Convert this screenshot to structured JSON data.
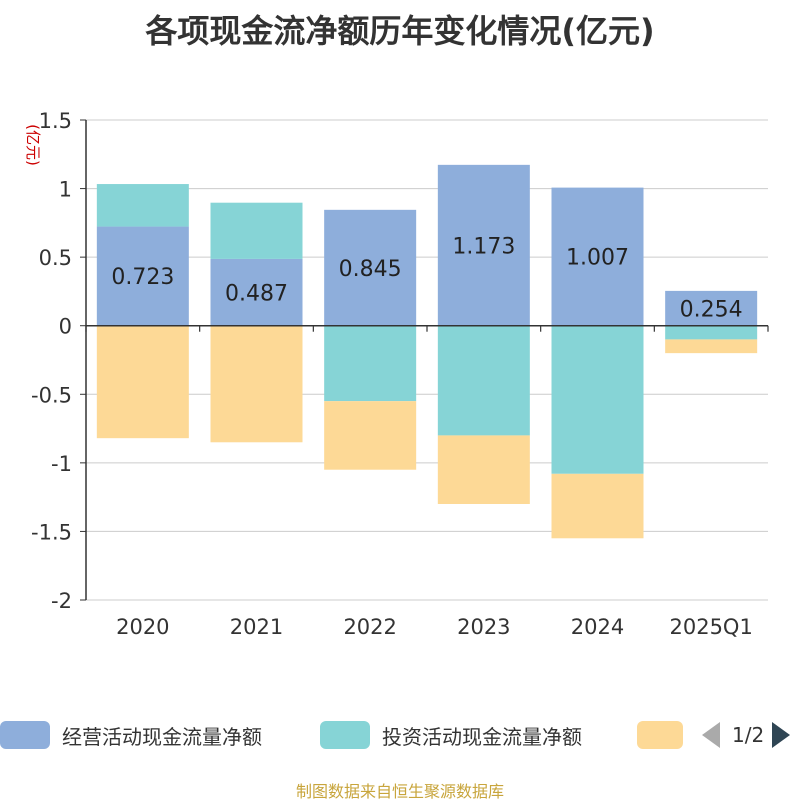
{
  "chart_data": {
    "type": "bar",
    "stacked": true,
    "title": "各项现金流净额历年变化情况(亿元)",
    "ylabel": "(亿元)",
    "categories": [
      "2020",
      "2021",
      "2022",
      "2023",
      "2024",
      "2025Q1"
    ],
    "ylim": [
      -2,
      1.5
    ],
    "yticks": [
      "1.5",
      "1",
      "0.5",
      "0",
      "-0.5",
      "-1",
      "-1.5",
      "-2"
    ],
    "grid": true,
    "legend_position": "bottom",
    "series": [
      {
        "name": "经营活动现金流量净额",
        "color": "#8eaedb",
        "values": [
          0.723,
          0.487,
          0.845,
          1.173,
          1.007,
          0.254
        ],
        "labels": [
          "0.723",
          "0.487",
          "0.845",
          "1.173",
          "1.007",
          "0.254"
        ]
      },
      {
        "name": "投资活动现金流量净额",
        "color": "#86d4d6",
        "values": [
          0.31,
          0.41,
          -0.55,
          -0.8,
          -1.08,
          -0.1
        ]
      },
      {
        "name": "",
        "color": "#fdd996",
        "values": [
          -0.82,
          -0.85,
          -0.5,
          -0.5,
          -0.47,
          -0.1
        ]
      }
    ]
  },
  "legend": {
    "item1": "经营活动现金流量净额",
    "item2": "投资活动现金流量净额",
    "page": "1/2"
  },
  "source_note": "制图数据来自恒生聚源数据库"
}
